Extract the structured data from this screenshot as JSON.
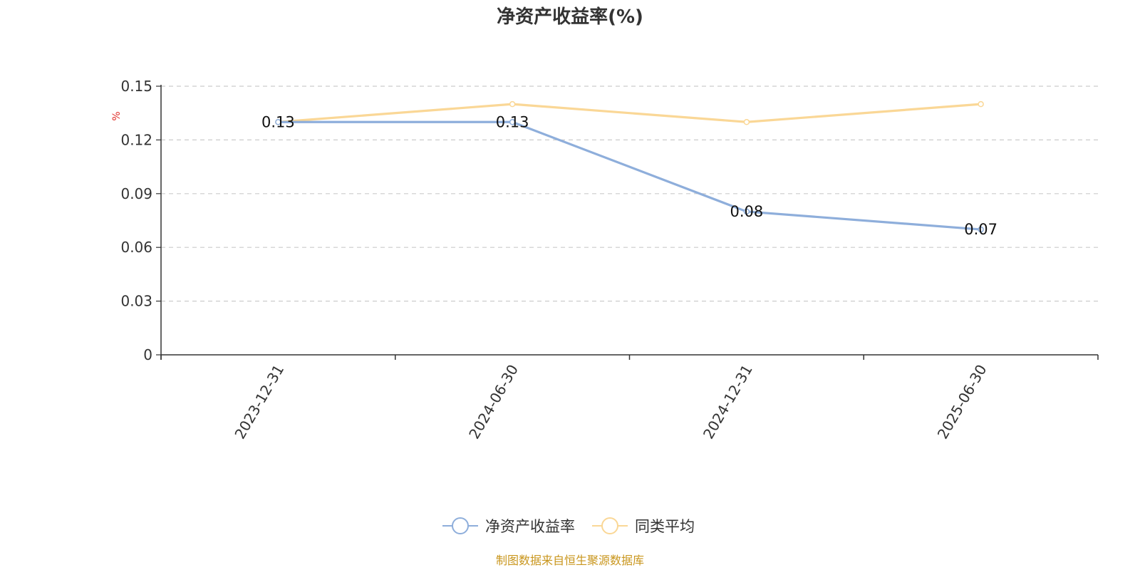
{
  "chart_data": {
    "type": "line",
    "title": "净资产收益率(%)",
    "ylabel": "%",
    "xlabel": "",
    "categories": [
      "2023-12-31",
      "2024-06-30",
      "2024-12-31",
      "2025-06-30"
    ],
    "ylim": [
      0,
      0.15
    ],
    "yticks": [
      "0",
      "0.03",
      "0.06",
      "0.09",
      "0.12",
      "0.15"
    ],
    "grid": true,
    "legend_position": "bottom",
    "series": [
      {
        "name": "净资产收益率",
        "color": "#8eaedb",
        "values": [
          0.13,
          0.13,
          0.08,
          0.07
        ],
        "labels": [
          "0.13",
          "0.13",
          "0.08",
          "0.07"
        ]
      },
      {
        "name": "同类平均",
        "color": "#fad796",
        "values": [
          0.13,
          0.14,
          0.13,
          0.14
        ]
      }
    ],
    "source": "制图数据来自恒生聚源数据库"
  }
}
